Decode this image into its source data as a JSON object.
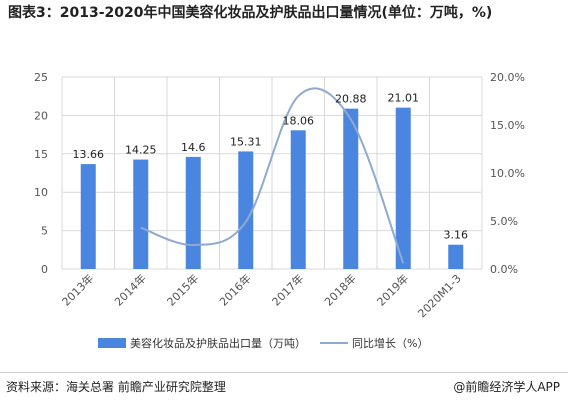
{
  "title": "图表3：2013-2020年中国美容化妆品及护肤品出口量情况(单位：万吨，%)",
  "source": "资料来源：海关总署 前瞻产业研究院整理",
  "brand": "@前瞻经济学人APP",
  "colors": {
    "bar": "#4a86e0",
    "line": "#8fa9cf",
    "grid": "#d9d9d9",
    "text": "#555555"
  },
  "chart_data": {
    "type": "bar",
    "categories": [
      "2013年",
      "2014年",
      "2015年",
      "2016年",
      "2017年",
      "2018年",
      "2019年",
      "2020M1-3"
    ],
    "series": [
      {
        "name": "美容化妆品及护肤品出口量（万吨）",
        "axis": "left",
        "values": [
          13.66,
          14.25,
          14.6,
          15.31,
          18.06,
          20.88,
          21.01,
          3.16
        ]
      },
      {
        "name": "同比增长（%）",
        "type": "line",
        "axis": "right",
        "smooth": true,
        "values": [
          null,
          4.3,
          2.5,
          4.9,
          18.0,
          15.6,
          0.6,
          null
        ]
      }
    ],
    "data_labels": [
      "13.66",
      "14.25",
      "14.6",
      "15.31",
      "18.06",
      "20.88",
      "21.01",
      "3.16"
    ],
    "y_left": {
      "min": 0,
      "max": 25,
      "ticks": [
        "0",
        "5",
        "10",
        "15",
        "20",
        "25"
      ]
    },
    "y_right": {
      "min": 0,
      "max": 20,
      "ticks": [
        "0.0%",
        "5.0%",
        "10.0%",
        "15.0%",
        "20.0%"
      ]
    },
    "grid": true,
    "legend_position": "bottom"
  }
}
